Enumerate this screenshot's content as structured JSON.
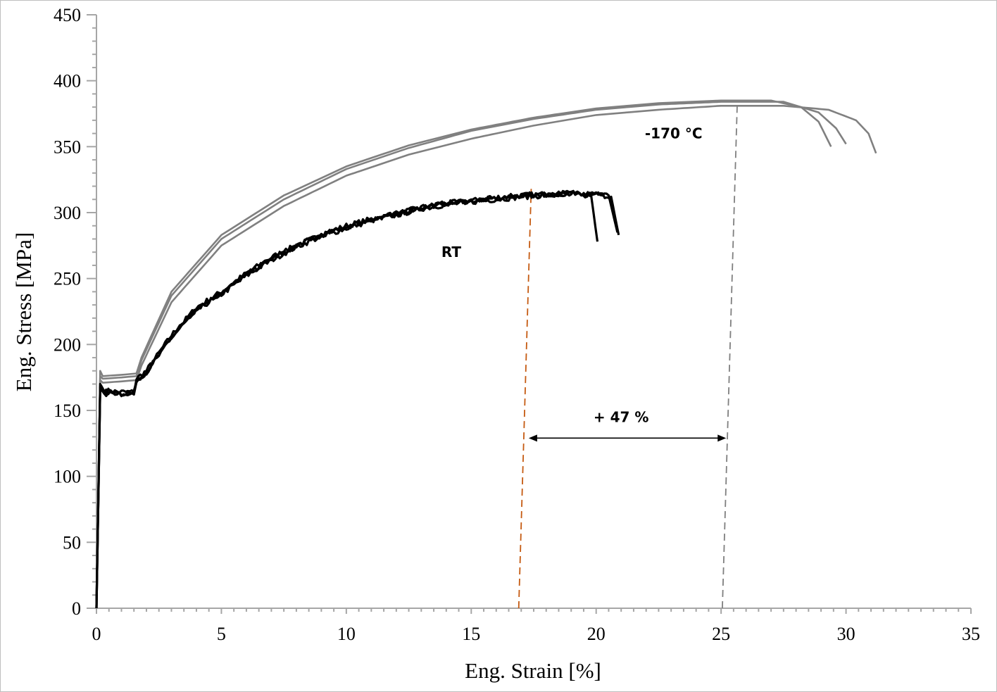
{
  "chart_data": {
    "type": "line",
    "title": "",
    "xlabel": "Eng. Strain [%]",
    "ylabel": "Eng. Stress [MPa]",
    "xlim": [
      0,
      35
    ],
    "ylim": [
      0,
      450
    ],
    "xticks": [
      0,
      5,
      10,
      15,
      20,
      25,
      30,
      35
    ],
    "yticks": [
      0,
      50,
      100,
      150,
      200,
      250,
      300,
      350,
      400,
      450
    ],
    "grid": false,
    "legend": "none",
    "colors": {
      "cryo": "#808080",
      "rt": "#000000",
      "rt_marker": "#c55a11",
      "cryo_marker": "#7f7f7f",
      "axis": "#a6a6a6"
    },
    "series": [
      {
        "group": "cryo",
        "points": [
          [
            0,
            0
          ],
          [
            0.15,
            180
          ],
          [
            0.25,
            176
          ],
          [
            1.0,
            177
          ],
          [
            1.6,
            178
          ],
          [
            1.8,
            190
          ],
          [
            3,
            240
          ],
          [
            5,
            283
          ],
          [
            7.5,
            313
          ],
          [
            10,
            335
          ],
          [
            12.5,
            351
          ],
          [
            15,
            363
          ],
          [
            17.5,
            372
          ],
          [
            20,
            379
          ],
          [
            22.5,
            383
          ],
          [
            25,
            385
          ],
          [
            27,
            385
          ],
          [
            28.2,
            380
          ],
          [
            28.9,
            369
          ],
          [
            29.4,
            350
          ]
        ]
      },
      {
        "group": "cryo",
        "points": [
          [
            0,
            0
          ],
          [
            0.15,
            176
          ],
          [
            0.25,
            174
          ],
          [
            1.0,
            175
          ],
          [
            1.6,
            176
          ],
          [
            1.8,
            188
          ],
          [
            3,
            237
          ],
          [
            5,
            280
          ],
          [
            7.5,
            310
          ],
          [
            10,
            333
          ],
          [
            12.5,
            349
          ],
          [
            15,
            362
          ],
          [
            17.5,
            371
          ],
          [
            20,
            378
          ],
          [
            22.5,
            382
          ],
          [
            25,
            384
          ],
          [
            27.5,
            384
          ],
          [
            28.9,
            376
          ],
          [
            29.6,
            364
          ],
          [
            30.0,
            352
          ]
        ]
      },
      {
        "group": "cryo",
        "points": [
          [
            0,
            0
          ],
          [
            0.15,
            173
          ],
          [
            0.25,
            171
          ],
          [
            1.0,
            172
          ],
          [
            1.6,
            173
          ],
          [
            1.8,
            184
          ],
          [
            3,
            232
          ],
          [
            5,
            275
          ],
          [
            7.5,
            305
          ],
          [
            10,
            328
          ],
          [
            12.5,
            344
          ],
          [
            15,
            356
          ],
          [
            17.5,
            366
          ],
          [
            20,
            374
          ],
          [
            22.5,
            378
          ],
          [
            25,
            381
          ],
          [
            27.5,
            381
          ],
          [
            29.3,
            378
          ],
          [
            30.4,
            370
          ],
          [
            30.9,
            360
          ],
          [
            31.2,
            345
          ]
        ]
      },
      {
        "group": "rt",
        "points": [
          [
            0,
            0
          ],
          [
            0.15,
            170
          ],
          [
            0.3,
            165
          ],
          [
            1.0,
            164
          ],
          [
            1.5,
            164
          ],
          [
            1.6,
            174
          ],
          [
            2,
            180
          ],
          [
            3,
            207
          ],
          [
            4,
            228
          ],
          [
            5,
            240
          ],
          [
            6,
            254
          ],
          [
            7,
            266
          ],
          [
            8,
            275
          ],
          [
            9,
            283
          ],
          [
            10,
            290
          ],
          [
            11,
            295
          ],
          [
            12,
            299
          ],
          [
            13,
            304
          ],
          [
            14,
            307
          ],
          [
            15,
            309
          ],
          [
            16,
            311
          ],
          [
            17,
            313
          ],
          [
            18,
            314
          ],
          [
            19,
            314
          ],
          [
            19.8,
            313
          ],
          [
            20.05,
            278
          ]
        ]
      },
      {
        "group": "rt",
        "points": [
          [
            0,
            0
          ],
          [
            0.15,
            168
          ],
          [
            0.3,
            164
          ],
          [
            1.0,
            163
          ],
          [
            1.5,
            163
          ],
          [
            1.6,
            173
          ],
          [
            2,
            179
          ],
          [
            3,
            205
          ],
          [
            4,
            226
          ],
          [
            5,
            238
          ],
          [
            6,
            252
          ],
          [
            7,
            264
          ],
          [
            8,
            274
          ],
          [
            9,
            282
          ],
          [
            10,
            288
          ],
          [
            11,
            294
          ],
          [
            12,
            298
          ],
          [
            13,
            303
          ],
          [
            14,
            306
          ],
          [
            15,
            308
          ],
          [
            16,
            310
          ],
          [
            17,
            312
          ],
          [
            18,
            313
          ],
          [
            19,
            314
          ],
          [
            20,
            314
          ],
          [
            20.6,
            312
          ],
          [
            20.9,
            283
          ]
        ]
      },
      {
        "group": "rt",
        "points": [
          [
            0,
            0
          ],
          [
            0.15,
            167
          ],
          [
            0.3,
            163
          ],
          [
            1.0,
            162
          ],
          [
            1.5,
            162
          ],
          [
            1.6,
            172
          ],
          [
            2,
            178
          ],
          [
            3,
            206
          ],
          [
            4,
            227
          ],
          [
            5,
            239
          ],
          [
            6,
            253
          ],
          [
            7,
            265
          ],
          [
            8,
            275
          ],
          [
            9,
            283
          ],
          [
            10,
            289
          ],
          [
            11,
            295
          ],
          [
            12,
            299
          ],
          [
            13,
            304
          ],
          [
            14,
            307
          ],
          [
            15,
            309
          ],
          [
            16,
            311
          ],
          [
            17,
            313
          ],
          [
            18,
            314
          ],
          [
            19,
            315
          ],
          [
            20,
            315
          ],
          [
            20.5,
            313
          ],
          [
            20.85,
            285
          ]
        ]
      }
    ],
    "reference_lines": [
      {
        "group": "rt_marker",
        "from": [
          16.9,
          0
        ],
        "to": [
          17.4,
          318
        ]
      },
      {
        "group": "cryo_marker",
        "from": [
          25.05,
          0
        ],
        "to": [
          25.65,
          385
        ]
      }
    ],
    "arrow": {
      "y": 129,
      "from_x": 17.3,
      "to_x": 25.2
    },
    "annotations": [
      {
        "text": "RT",
        "x": 14.2,
        "y": 270
      },
      {
        "text": "-170 °C",
        "x": 23.1,
        "y": 360
      },
      {
        "text": "+ 47 %",
        "x": 21.0,
        "y": 145
      }
    ]
  }
}
